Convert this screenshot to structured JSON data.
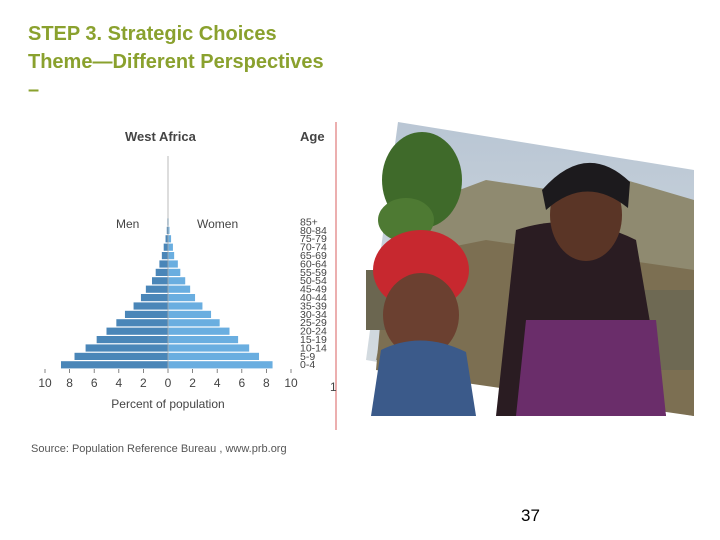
{
  "slide": {
    "title_line1": "STEP 3. Strategic Choices",
    "title_line2": "Theme—Different Perspectives",
    "title_line3": "–",
    "source": "Source: Population Reference Bureau , www.prb.org",
    "page_number": "37"
  },
  "colors": {
    "title": "#8aa12e",
    "men_bar": "#4a86b8",
    "women_bar": "#6aaee0",
    "text": "#444444"
  },
  "chart_data": {
    "type": "bar",
    "orientation": "horizontal-pyramid",
    "title": "West Africa",
    "age_header": "Age",
    "xlabel": "Percent of population",
    "xlim": [
      -10,
      10
    ],
    "x_ticks": [
      "10",
      "8",
      "6",
      "4",
      "2",
      "0",
      "2",
      "4",
      "6",
      "8",
      "10"
    ],
    "categories": [
      "0-4",
      "5-9",
      "10-14",
      "15-19",
      "20-24",
      "25-29",
      "30-34",
      "35-39",
      "40-44",
      "45-49",
      "50-54",
      "55-59",
      "60-64",
      "65-69",
      "70-74",
      "75-79",
      "80-84",
      "85+"
    ],
    "series": [
      {
        "name": "Men",
        "values": [
          8.7,
          7.6,
          6.7,
          5.8,
          5.0,
          4.2,
          3.5,
          2.8,
          2.2,
          1.8,
          1.3,
          1.0,
          0.7,
          0.5,
          0.35,
          0.2,
          0.1,
          0.05
        ]
      },
      {
        "name": "Women",
        "values": [
          8.5,
          7.4,
          6.6,
          5.7,
          5.0,
          4.2,
          3.5,
          2.8,
          2.2,
          1.8,
          1.4,
          1.0,
          0.8,
          0.5,
          0.4,
          0.25,
          0.12,
          0.05
        ]
      }
    ],
    "clipped_tick": "1"
  }
}
